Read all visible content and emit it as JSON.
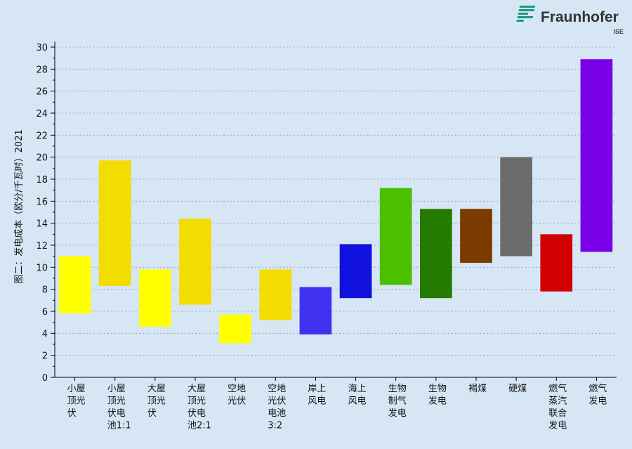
{
  "logo": {
    "name": "Fraunhofer",
    "sub": "ISE",
    "color": "#179c7d"
  },
  "chart_data": {
    "type": "bar",
    "subtype": "floating-range",
    "ylabel": "图二：发电成本（欧分/千瓦时）2021",
    "ylim": [
      0,
      30
    ],
    "yticks": [
      0,
      2,
      4,
      6,
      8,
      10,
      12,
      14,
      16,
      18,
      20,
      22,
      24,
      26,
      28,
      30
    ],
    "grid": "horizontal-dotted",
    "categories": [
      [
        "小屋",
        "顶光",
        "伏"
      ],
      [
        "小屋",
        "顶光",
        "伏电",
        "池1:1"
      ],
      [
        "大屋",
        "顶光",
        "伏"
      ],
      [
        "大屋",
        "顶光",
        "伏电",
        "池2:1"
      ],
      [
        "空地",
        "光伏"
      ],
      [
        "空地",
        "光伏",
        "电池",
        "3:2"
      ],
      [
        "岸上",
        "风电"
      ],
      [
        "海上",
        "风电"
      ],
      [
        "生物",
        "制气",
        "发电"
      ],
      [
        "生物",
        "发电"
      ],
      [
        "褐煤"
      ],
      [
        "硬煤"
      ],
      [
        "燃气",
        "蒸汽",
        "联合",
        "发电"
      ],
      [
        "燃气",
        "发电"
      ]
    ],
    "low": [
      5.8,
      8.3,
      4.6,
      6.6,
      3.1,
      5.2,
      3.9,
      7.2,
      8.4,
      7.2,
      10.4,
      11.0,
      7.8,
      11.4
    ],
    "high": [
      11.0,
      19.7,
      9.8,
      14.4,
      5.7,
      9.8,
      8.2,
      12.1,
      17.2,
      15.3,
      15.3,
      20.0,
      13.0,
      28.9
    ],
    "colors": [
      "#ffff00",
      "#f3dc00",
      "#ffff00",
      "#f3dc00",
      "#ffff00",
      "#f3dc00",
      "#4032f0",
      "#1111dd",
      "#4cbf00",
      "#257b00",
      "#7a3a00",
      "#6c6c6c",
      "#d00000",
      "#7a00e8"
    ]
  }
}
